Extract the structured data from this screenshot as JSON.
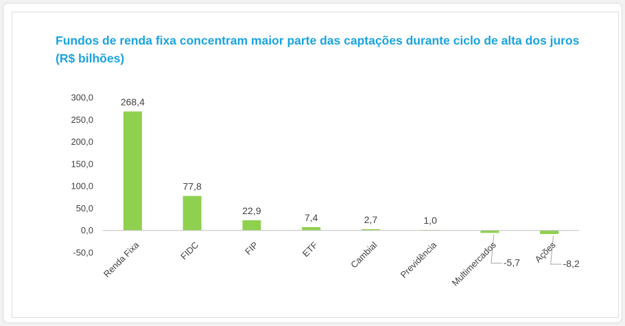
{
  "chart_data": {
    "type": "bar",
    "title": "Fundos de renda fixa concentram maior parte das captações durante ciclo de alta dos juros (R$ bilhões)",
    "categories": [
      "Renda Fixa",
      "FIDC",
      "FIP",
      "ETF",
      "Cambial",
      "Previdência",
      "Multimercados",
      "Ações"
    ],
    "values": [
      268.4,
      77.8,
      22.9,
      7.4,
      2.7,
      1.0,
      -5.7,
      -8.2
    ],
    "data_labels": [
      "268,4",
      "77,8",
      "22,9",
      "7,4",
      "2,7",
      "1,0",
      "-5,7",
      "-8,2"
    ],
    "y_ticks": [
      300,
      250,
      200,
      150,
      100,
      50,
      0,
      -50
    ],
    "y_tick_labels": [
      "300,0",
      "250,0",
      "200,0",
      "150,0",
      "100,0",
      "50,0",
      "0,0",
      "-50,0"
    ],
    "ylim": [
      -50,
      300
    ],
    "grid": false,
    "legend": "none",
    "xlabel": "",
    "ylabel": "",
    "bar_color": "#8fd14f",
    "title_color": "#1aa3df"
  }
}
